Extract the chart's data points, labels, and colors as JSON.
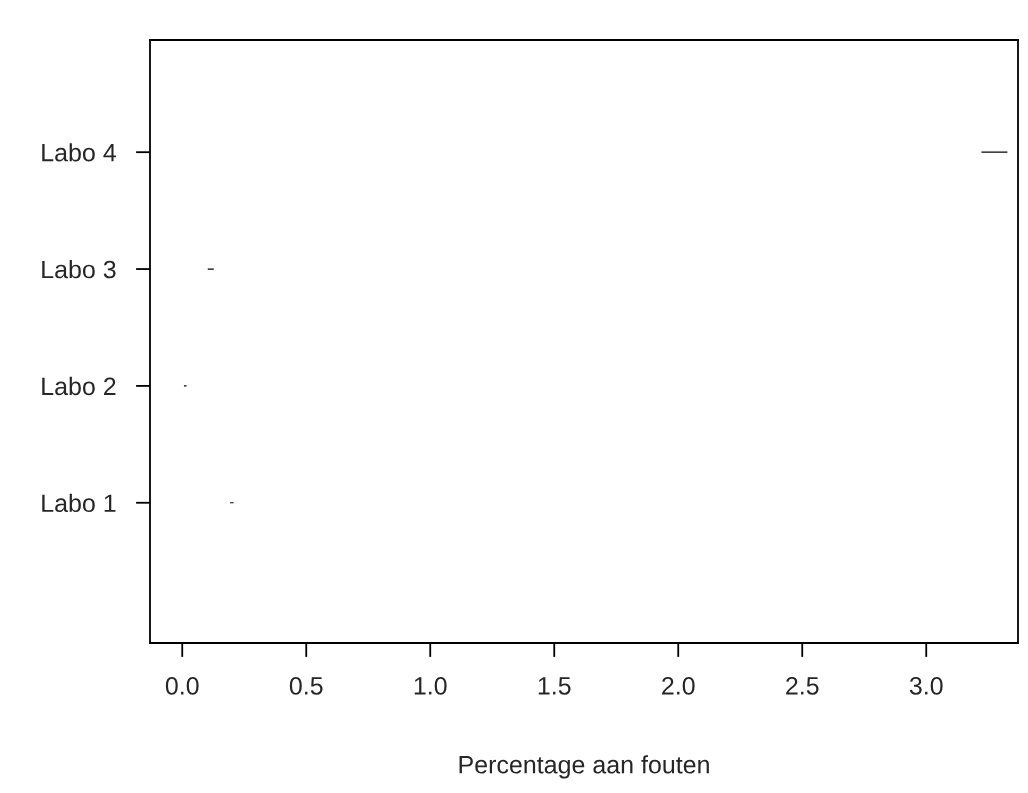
{
  "chart_data": {
    "type": "bar",
    "orientation": "horizontal",
    "xlabel": "Percentage aan fouten",
    "categories": [
      "Labo 4",
      "Labo 3",
      "Labo 2",
      "Labo 1"
    ],
    "base": [
      3.22,
      0.1,
      0.004,
      0.19
    ],
    "values": [
      0.11,
      0.03,
      0.016,
      0.02
    ],
    "color": "#000000",
    "xlim": [
      -0.13,
      3.37
    ],
    "xticks": [
      {
        "value": 0,
        "label": "0.0"
      },
      0.5,
      {
        "value": 1,
        "label": "1.0"
      },
      1.5,
      {
        "value": 2,
        "label": "2.0"
      },
      2.5,
      {
        "value": 3,
        "label": "3.0"
      }
    ],
    "grid": false
  }
}
